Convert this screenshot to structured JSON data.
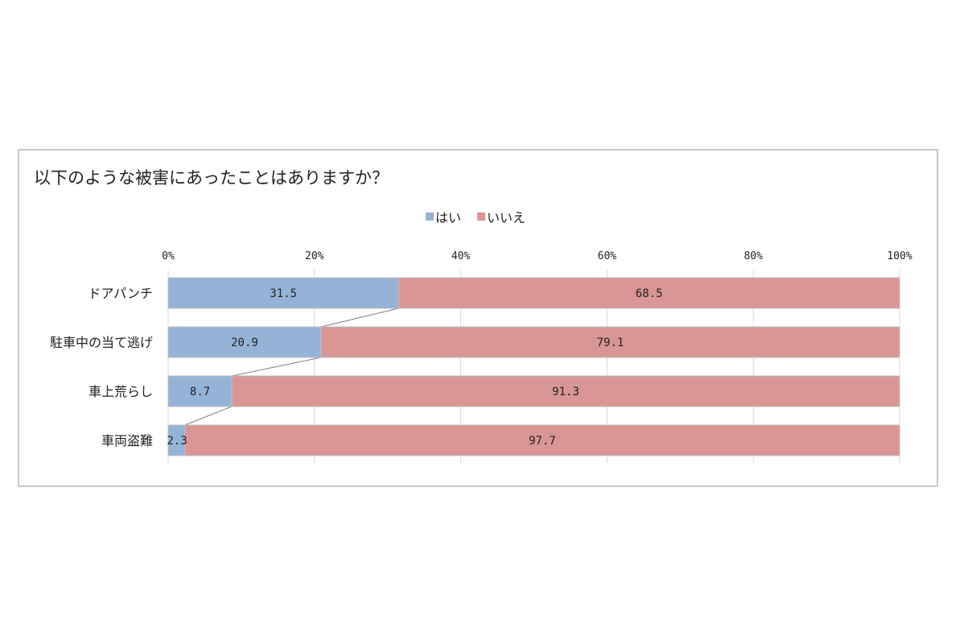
{
  "chart_data": {
    "type": "bar",
    "orientation": "horizontal",
    "stacked": true,
    "title": "以下のような被害にあったことはありますか？",
    "categories": [
      "ドアパンチ",
      "駐車中の当て逃げ",
      "車上荒らし",
      "車両盗難"
    ],
    "series": [
      {
        "name": "はい",
        "values": [
          31.5,
          20.9,
          8.7,
          2.3
        ],
        "color": "#95b3d7"
      },
      {
        "name": "いいえ",
        "values": [
          68.5,
          79.1,
          91.3,
          97.7
        ],
        "color": "#d99694"
      }
    ],
    "value_labels": {
      "はい": [
        "31.5",
        "20.9",
        "8.7",
        "2.3"
      ],
      "いいえ": [
        "68.5",
        "79.1",
        "91.3",
        "97.7"
      ]
    },
    "x_ticks": [
      "0%",
      "20%",
      "40%",
      "60%",
      "80%",
      "100%"
    ],
    "xlim": [
      0,
      100
    ],
    "legend_position": "top",
    "grid": true,
    "series_lines": true
  }
}
